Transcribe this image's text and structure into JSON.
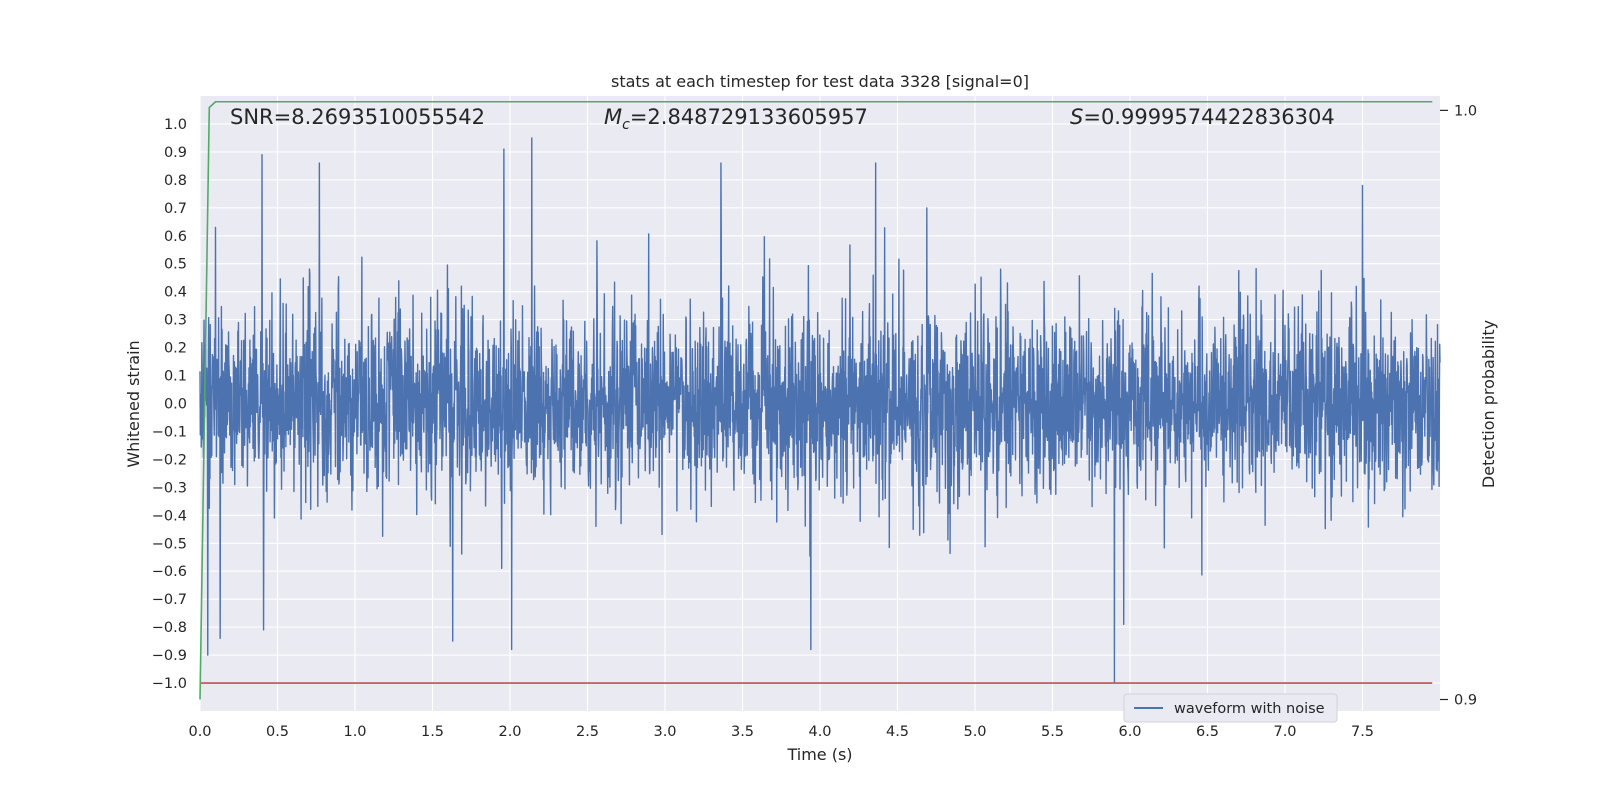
{
  "chart_data": {
    "type": "line",
    "title": "stats at each timestep for test data 3328 [signal=0]",
    "xlabel": "Time (s)",
    "ylabel": "Whitened strain",
    "ylabel_right": "Detection probability",
    "xlim": [
      0.0,
      8.0
    ],
    "ylim": [
      -1.1,
      1.1
    ],
    "ylim_right": [
      0.8915,
      0.9985
    ],
    "x_ticks": [
      "0.0",
      "0.5",
      "1.0",
      "1.5",
      "2.0",
      "2.5",
      "3.0",
      "3.5",
      "4.0",
      "4.5",
      "5.0",
      "5.5",
      "6.0",
      "6.5",
      "7.0",
      "7.5"
    ],
    "x_tick_values": [
      0.0,
      0.5,
      1.0,
      1.5,
      2.0,
      2.5,
      3.0,
      3.5,
      4.0,
      4.5,
      5.0,
      5.5,
      6.0,
      6.5,
      7.0,
      7.5
    ],
    "y_ticks": [
      "1.0",
      "0.9",
      "0.8",
      "0.7",
      "0.6",
      "0.5",
      "0.4",
      "0.3",
      "0.2",
      "0.1",
      "0.0",
      "−0.1",
      "−0.2",
      "−0.3",
      "−0.4",
      "−0.5",
      "−0.6",
      "−0.7",
      "−0.8",
      "−0.9",
      "−1.0"
    ],
    "y_tick_values": [
      1.0,
      0.9,
      0.8,
      0.7,
      0.6,
      0.5,
      0.4,
      0.3,
      0.2,
      0.1,
      0.0,
      -0.1,
      -0.2,
      -0.3,
      -0.4,
      -0.5,
      -0.6,
      -0.7,
      -0.8,
      -0.9,
      -1.0
    ],
    "y_ticks_right": [
      "1.0",
      "0.9"
    ],
    "y_tick_values_right": [
      0.996,
      0.8935
    ],
    "grid": true,
    "annotations": [
      {
        "kind": "snr",
        "text": "SNR=8.2693510055542"
      },
      {
        "kind": "mc",
        "symbol": "M",
        "subscript": "c",
        "value_text": "=2.848729133605957"
      },
      {
        "kind": "s",
        "symbol": "S",
        "value_text": "=0.9999574422836304"
      }
    ],
    "series": [
      {
        "name": "waveform with noise",
        "color": "#4c72b0",
        "generated": true,
        "n_points": 4000,
        "x_range": [
          0.0,
          8.0
        ],
        "envelope": {
          "typical_abs": 0.3,
          "peak_max": 0.95,
          "peak_min": -1.0
        },
        "peaks": [
          {
            "x": 0.05,
            "y": -0.9
          },
          {
            "x": 0.1,
            "y": 0.63
          },
          {
            "x": 0.13,
            "y": -0.84
          },
          {
            "x": 0.4,
            "y": 0.89
          },
          {
            "x": 0.41,
            "y": -0.81
          },
          {
            "x": 0.77,
            "y": 0.86
          },
          {
            "x": 1.63,
            "y": -0.85
          },
          {
            "x": 1.96,
            "y": 0.91
          },
          {
            "x": 2.01,
            "y": -0.88
          },
          {
            "x": 2.14,
            "y": 0.95
          },
          {
            "x": 3.36,
            "y": 0.86
          },
          {
            "x": 3.94,
            "y": -0.88
          },
          {
            "x": 4.36,
            "y": 0.86
          },
          {
            "x": 5.9,
            "y": -1.0
          },
          {
            "x": 5.96,
            "y": -0.79
          },
          {
            "x": 7.5,
            "y": 0.78
          }
        ]
      },
      {
        "name": "",
        "color": "#55a868",
        "axis": "right",
        "x": [
          0.0,
          0.06,
          0.1,
          0.2,
          7.95
        ],
        "y": [
          0.8935,
          0.9965,
          0.9975,
          0.9975,
          0.9975
        ]
      },
      {
        "name": "",
        "color": "#c44e52",
        "axis": "left",
        "x": [
          0.0,
          7.95
        ],
        "y": [
          -1.0,
          -1.0
        ]
      }
    ],
    "legend": {
      "placement": "lower-right",
      "entries": [
        "waveform with noise"
      ]
    }
  }
}
